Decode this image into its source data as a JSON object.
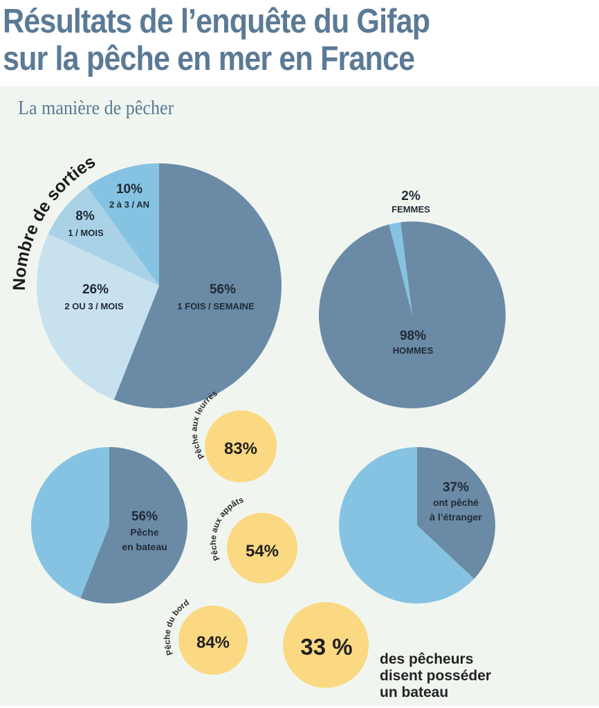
{
  "header": {
    "title_line1": "Résultats de l’enquête du Gifap",
    "title_line2": "sur la pêche en mer en France",
    "subtitle": "La manière de pêcher"
  },
  "colors": {
    "dark_blue": "#6a8aa6",
    "light_blue": "#86c3e2",
    "pale_blue": "#c8e1ef",
    "mid_pale_blue": "#a9d2e7",
    "yellow": "#fbd882",
    "background": "#f0f6ef",
    "title": "#5b7a96"
  },
  "chart_data": [
    {
      "type": "pie",
      "id": "frequency",
      "title": "Nombre de sorties",
      "slices": [
        {
          "label": "1 FOIS / SEMAINE",
          "value": 56,
          "pct_label": "56%"
        },
        {
          "label": "2 OU 3 / MOIS",
          "value": 26,
          "pct_label": "26%"
        },
        {
          "label": "1 / MOIS",
          "value": 8,
          "pct_label": "8%"
        },
        {
          "label": "2 à 3 / AN",
          "value": 10,
          "pct_label": "10%"
        }
      ]
    },
    {
      "type": "pie",
      "id": "gender",
      "title": "",
      "slices": [
        {
          "label": "HOMMES",
          "value": 98,
          "pct_label": "98%"
        },
        {
          "label": "FEMMES",
          "value": 2,
          "pct_label": "2%"
        }
      ]
    },
    {
      "type": "pie",
      "id": "boat",
      "title": "",
      "slices": [
        {
          "label": "Pêche en bateau",
          "value": 56,
          "pct_label": "56%",
          "line1": "Pêche",
          "line2": "en bateau"
        },
        {
          "label": "",
          "value": 44
        }
      ]
    },
    {
      "type": "pie",
      "id": "abroad",
      "title": "",
      "slices": [
        {
          "label": "ont pêché à l’étranger",
          "value": 37,
          "pct_label": "37%",
          "line1": "ont pêché",
          "line2": "à l’étranger"
        },
        {
          "label": "",
          "value": 63
        }
      ]
    },
    {
      "type": "bubble",
      "id": "methods",
      "items": [
        {
          "label": "Pêche aux leurres",
          "value": 83,
          "pct_label": "83%"
        },
        {
          "label": "Pêche aux appâts",
          "value": 54,
          "pct_label": "54%"
        },
        {
          "label": "Pêche du bord",
          "value": 84,
          "pct_label": "84%"
        }
      ]
    },
    {
      "type": "bubble",
      "id": "boat-owners",
      "items": [
        {
          "label": "des pêcheurs disent posséder un bateau",
          "value": 33,
          "pct_label": "33 %"
        }
      ]
    }
  ],
  "boat_note": {
    "line1": "des pêcheurs",
    "line2": "disent posséder",
    "line3": "un bateau"
  }
}
